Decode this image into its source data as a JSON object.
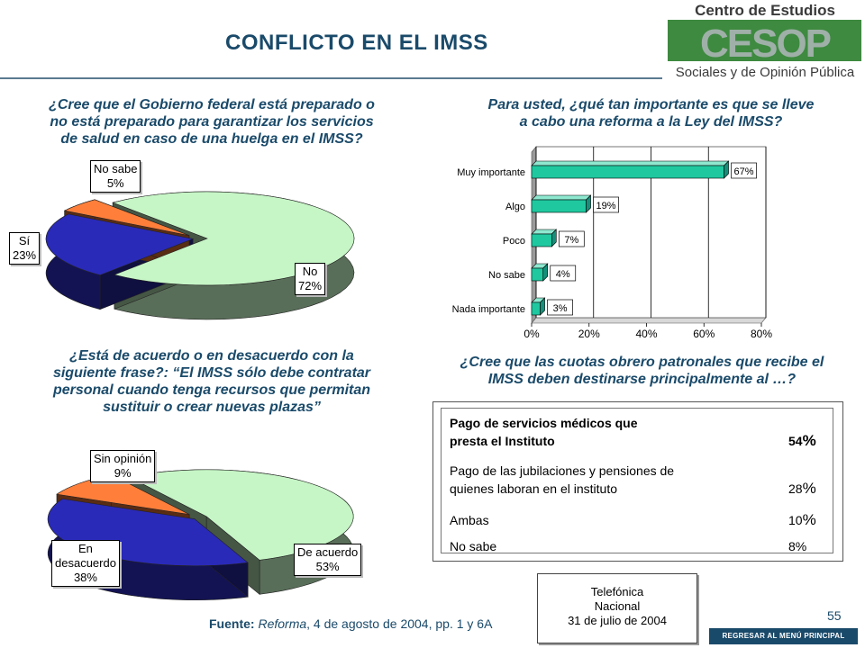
{
  "page": {
    "title": "CONFLICTO EN EL IMSS",
    "page_number": "55",
    "back_button": "REGRESAR AL MENÚ PRINCIPAL",
    "source_label": "Fuente:",
    "source_pub": "Reforma",
    "source_rest": ", 4 de agosto de 2004, pp. 1 y 6A",
    "survey_lines": [
      "Telefónica",
      "Nacional",
      "31 de julio de 2004"
    ],
    "logo": {
      "line1": "Centro de Estudios",
      "mark": "CESOP",
      "line2": "Sociales y de Opinión Pública"
    }
  },
  "questions": {
    "q1": [
      "¿Cree que el Gobierno federal está preparado o",
      "no está preparado para garantizar los servicios",
      "de salud en caso de una huelga en el IMSS?"
    ],
    "q2": [
      "Para usted, ¿qué tan importante es que se lleve",
      "a cabo una reforma a la Ley del IMSS?"
    ],
    "q3": [
      "¿Está de acuerdo  o en desacuerdo con la",
      "siguiente frase?: “El IMSS sólo debe contratar",
      "personal cuando tenga recursos que permitan",
      "sustituir o crear nuevas plazas”"
    ],
    "q4": [
      "¿Cree que las cuotas obrero patronales que recibe el",
      "IMSS deben destinarse principalmente al …?"
    ]
  },
  "chart_data": [
    {
      "type": "pie",
      "labels": [
        "No",
        "Sí",
        "No sabe"
      ],
      "values": [
        72,
        23,
        5
      ],
      "value_labels": [
        "72%",
        "23%",
        "5%"
      ],
      "colors": [
        "#c6f5c6",
        "#2a2ab8",
        "#ff7f3a"
      ]
    },
    {
      "type": "bar",
      "orientation": "horizontal",
      "categories": [
        "Muy importante",
        "Algo",
        "Poco",
        "No sabe",
        "Nada importante"
      ],
      "values": [
        67,
        19,
        7,
        4,
        3
      ],
      "value_labels": [
        "67%",
        "19%",
        "7%",
        "4%",
        "3%"
      ],
      "xlim": [
        0,
        80
      ],
      "xticks": [
        "0%",
        "20%",
        "40%",
        "60%",
        "80%"
      ],
      "grid": true,
      "color": "#20c8a0"
    },
    {
      "type": "pie",
      "labels": [
        "De acuerdo",
        "En desacuerdo",
        "Sin opinión"
      ],
      "values": [
        53,
        38,
        9
      ],
      "value_labels": [
        "53%",
        "38%",
        "9%"
      ],
      "colors": [
        "#c6f5c6",
        "#2a2ab8",
        "#ff7f3a"
      ]
    },
    {
      "type": "table",
      "rows": [
        {
          "label": [
            "Pago de servicios médicos que",
            "presta el Instituto"
          ],
          "value": "54",
          "bold": true
        },
        {
          "label": [
            "Pago de las jubilaciones y pensiones de",
            "quienes laboran en el instituto"
          ],
          "value": "28",
          "bold": false
        },
        {
          "label": [
            "Ambas"
          ],
          "value": "10",
          "bold": false
        },
        {
          "label": [
            "No sabe"
          ],
          "value": "8%",
          "bold": false
        }
      ],
      "pct_sign": "%"
    }
  ]
}
